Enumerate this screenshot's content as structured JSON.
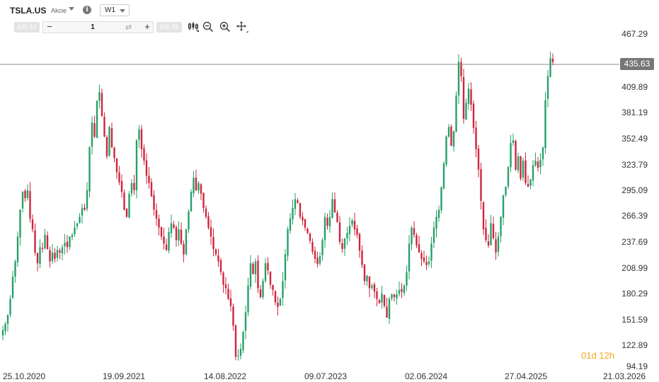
{
  "header": {
    "symbol": "TSLA.US",
    "asset_type": "Akcie",
    "interval": "W1",
    "sell_price": "435.63",
    "buy_price": "435.85",
    "quantity": "1",
    "icons": [
      "chart-type-icon",
      "zoom-out-icon",
      "zoom-in-icon",
      "crosshair-icon",
      "info-icon",
      "swap-icon"
    ]
  },
  "price_axis": {
    "labels": [
      "467.29",
      "409.89",
      "381.19",
      "352.49",
      "323.79",
      "295.09",
      "266.39",
      "237.69",
      "208.99",
      "180.29",
      "151.59",
      "122.89",
      "94.19"
    ],
    "last_price": "435.63"
  },
  "time_axis": {
    "labels": [
      "25.10.2020",
      "19.09.2021",
      "14.08.2022",
      "09.07.2023",
      "02.06.2024",
      "27.04.2025",
      "21.03.2026"
    ]
  },
  "countdown": "01d 12h",
  "colors": {
    "up": "#26a069",
    "down": "#d0243c",
    "price_line": "#8a8a8a",
    "price_tag": "#777777",
    "countdown": "#f5a623"
  },
  "chart_data": {
    "type": "candlestick",
    "series_label": "",
    "x_range": [
      "25.10.2020",
      "21.03.2026"
    ],
    "y_range": [
      94.19,
      480
    ],
    "last_price": 435.63,
    "closes": [
      135,
      142,
      152,
      170,
      195,
      212,
      240,
      270,
      290,
      283,
      292,
      260,
      248,
      222,
      210,
      228,
      226,
      242,
      226,
      212,
      222,
      215,
      225,
      222,
      228,
      233,
      228,
      240,
      242,
      250,
      255,
      262,
      272,
      270,
      292,
      340,
      368,
      352,
      392,
      402,
      375,
      352,
      330,
      363,
      340,
      328,
      312,
      301,
      290,
      270,
      262,
      288,
      300,
      292,
      348,
      360,
      338,
      325,
      308,
      300,
      285,
      270,
      260,
      250,
      240,
      232,
      225,
      245,
      255,
      250,
      236,
      248,
      232,
      220,
      248,
      268,
      290,
      306,
      292,
      300,
      288,
      272,
      262,
      250,
      240,
      226,
      220,
      212,
      200,
      186,
      182,
      170,
      162,
      140,
      105,
      106,
      114,
      133,
      155,
      185,
      210,
      198,
      212,
      182,
      172,
      190,
      210,
      202,
      186,
      180,
      166,
      161,
      170,
      190,
      220,
      248,
      260,
      272,
      282,
      278,
      262,
      258,
      250,
      244,
      235,
      223,
      215,
      209,
      218,
      236,
      262,
      252,
      262,
      282,
      267,
      256,
      234,
      226,
      238,
      244,
      252,
      258,
      248,
      242,
      224,
      208,
      190,
      196,
      182,
      185,
      178,
      170,
      165,
      176,
      162,
      149,
      170,
      175,
      172,
      175,
      180,
      178,
      185,
      200,
      232,
      250,
      242,
      230,
      222,
      215,
      212,
      208,
      212,
      232,
      250,
      262,
      270,
      295,
      322,
      352,
      363,
      342,
      358,
      398,
      436,
      420,
      372,
      390,
      406,
      388,
      362,
      338,
      315,
      280,
      248,
      236,
      230,
      255,
      238,
      222,
      240,
      262,
      286,
      296,
      318,
      345,
      348,
      315,
      330,
      305,
      325,
      300,
      296,
      304,
      320,
      325,
      317,
      326,
      340,
      393,
      420,
      440,
      435.63
    ],
    "date_ticks": [
      "25.10.2020",
      "19.09.2021",
      "14.08.2022",
      "09.07.2023",
      "02.06.2024",
      "27.04.2025",
      "21.03.2026"
    ]
  }
}
